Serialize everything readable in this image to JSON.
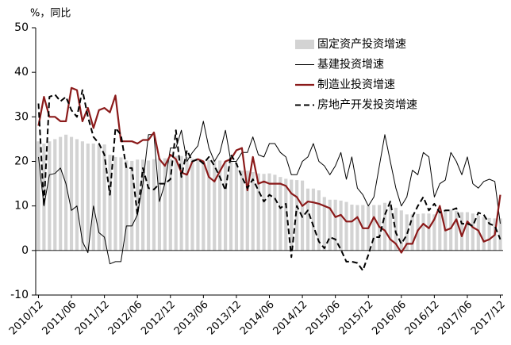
{
  "chart_data": {
    "type": "combo",
    "y_label": "%，同比",
    "categories": [
      "2010/12",
      null,
      null,
      null,
      null,
      null,
      "2011/06",
      null,
      null,
      null,
      null,
      null,
      "2011/12",
      null,
      null,
      null,
      null,
      null,
      "2012/06",
      null,
      null,
      null,
      null,
      null,
      "2012/12",
      null,
      null,
      null,
      null,
      null,
      "2013/06",
      null,
      null,
      null,
      null,
      null,
      "2013/12",
      null,
      null,
      null,
      null,
      null,
      "2014/06",
      null,
      null,
      null,
      null,
      null,
      "2014/12",
      null,
      null,
      null,
      null,
      null,
      "2015/06",
      null,
      null,
      null,
      null,
      null,
      "2015/12",
      null,
      null,
      null,
      null,
      null,
      "2016/06",
      null,
      null,
      null,
      null,
      null,
      "2016/12",
      null,
      null,
      null,
      null,
      null,
      "2017/06",
      null,
      null,
      null,
      null,
      null,
      "2017/12"
    ],
    "series": [
      {
        "name": "固定资产投资增速",
        "type": "bar",
        "color": "#d3d3d3",
        "values": [
          24.5,
          24,
          24.5,
          25,
          25.5,
          26,
          25.5,
          25,
          24.5,
          24,
          24,
          23.8,
          23.8,
          21.5,
          21,
          20.9,
          20.2,
          20.1,
          20.4,
          20.4,
          20.2,
          20.5,
          20.7,
          20.7,
          20.6,
          21.2,
          21.2,
          21,
          20.6,
          20.4,
          20.1,
          20.3,
          20.3,
          20.2,
          20.1,
          19.9,
          19.6,
          17.9,
          17.9,
          17.6,
          17.3,
          17.2,
          17.3,
          17,
          16.5,
          16.1,
          15.9,
          15.8,
          15.7,
          13.9,
          13.9,
          13.5,
          12,
          11.4,
          11.4,
          11.2,
          10.9,
          10.3,
          10.2,
          10.2,
          10,
          10.2,
          10.2,
          10.7,
          10.5,
          9.6,
          9,
          8.1,
          8.1,
          8.2,
          8.3,
          8.3,
          8.1,
          8.9,
          8.9,
          9.2,
          8.9,
          8.6,
          8.6,
          8.3,
          7.8,
          7.5,
          7.3,
          7.2,
          7.2
        ]
      },
      {
        "name": "基建投资增速",
        "type": "line",
        "color": "#000000",
        "width": 1,
        "values": [
          21,
          10,
          17,
          17.3,
          18.5,
          15,
          9,
          10,
          2,
          -0.5,
          10,
          4,
          3,
          -3,
          -2.5,
          -2.5,
          5.5,
          5.5,
          8,
          15,
          26,
          26,
          11,
          15,
          23,
          23,
          27,
          20,
          22,
          23.5,
          29,
          23,
          20,
          22,
          27,
          20,
          20,
          22,
          22,
          25.5,
          21.5,
          21,
          24,
          24,
          22,
          21,
          17,
          17,
          20,
          21,
          24,
          20,
          19,
          17,
          19,
          22,
          16,
          21,
          14,
          12.5,
          10,
          12,
          19,
          26,
          20,
          14,
          10,
          12,
          18,
          17,
          22,
          21,
          12,
          15,
          15.8,
          22,
          20,
          17,
          21,
          15,
          14,
          15.5,
          16,
          15.5,
          6
        ]
      },
      {
        "name": "制造业投资增速",
        "type": "line",
        "color": "#8b1a1a",
        "width": 2.2,
        "values": [
          28,
          34.5,
          30,
          30,
          29,
          29,
          36.5,
          36,
          29,
          32,
          27.5,
          31.5,
          32,
          31,
          34.8,
          24.5,
          24.5,
          24.5,
          24,
          24.8,
          24.8,
          26.5,
          20.5,
          19,
          21.5,
          20.5,
          17.5,
          17,
          20,
          20.5,
          20,
          16.5,
          15.5,
          17.8,
          20,
          20.5,
          22.5,
          23,
          13.5,
          21,
          15,
          15.5,
          15,
          15,
          15,
          14.5,
          12.8,
          12,
          10,
          11,
          10.8,
          10.5,
          10,
          9.5,
          7.5,
          8,
          6.5,
          6.5,
          7.5,
          5,
          5,
          7.5,
          5.3,
          4.5,
          2.5,
          1.5,
          -0.5,
          1.5,
          1.5,
          4.5,
          6,
          5,
          7,
          10,
          4.5,
          5,
          7,
          3.2,
          6.5,
          5.2,
          4.5,
          2,
          2.5,
          3.5,
          12.5
        ]
      },
      {
        "name": "房地产开发投资增速",
        "type": "line",
        "color": "#000000",
        "width": 2,
        "style": "dashed",
        "values": [
          33,
          10,
          34.5,
          35,
          33.5,
          34.5,
          31.5,
          30,
          36,
          30,
          25.5,
          24,
          21.5,
          12.5,
          27.5,
          26,
          18.5,
          18.5,
          8,
          18.5,
          14,
          13.7,
          15,
          15,
          16,
          27,
          16.5,
          22.5,
          20,
          20.5,
          19.5,
          21,
          19,
          16.5,
          13.5,
          21.5,
          19.5,
          16.5,
          14,
          16,
          13.5,
          11,
          12.5,
          11.7,
          9.5,
          10.5,
          -1.5,
          10,
          7.5,
          9,
          5.5,
          2,
          0.5,
          3,
          2.5,
          0.2,
          -2.5,
          -2.5,
          -2.8,
          -4.5,
          -1,
          3,
          3,
          8,
          11,
          4,
          1.5,
          3.5,
          7.5,
          10,
          12,
          9,
          10.5,
          8.5,
          9,
          9,
          9.5,
          6,
          6,
          5.5,
          8.5,
          8,
          6,
          5.5,
          2.5
        ]
      }
    ],
    "ylim": [
      -10,
      50
    ],
    "yticks": [
      -10,
      0,
      10,
      20,
      30,
      40,
      50
    ],
    "legend": "top-right"
  }
}
